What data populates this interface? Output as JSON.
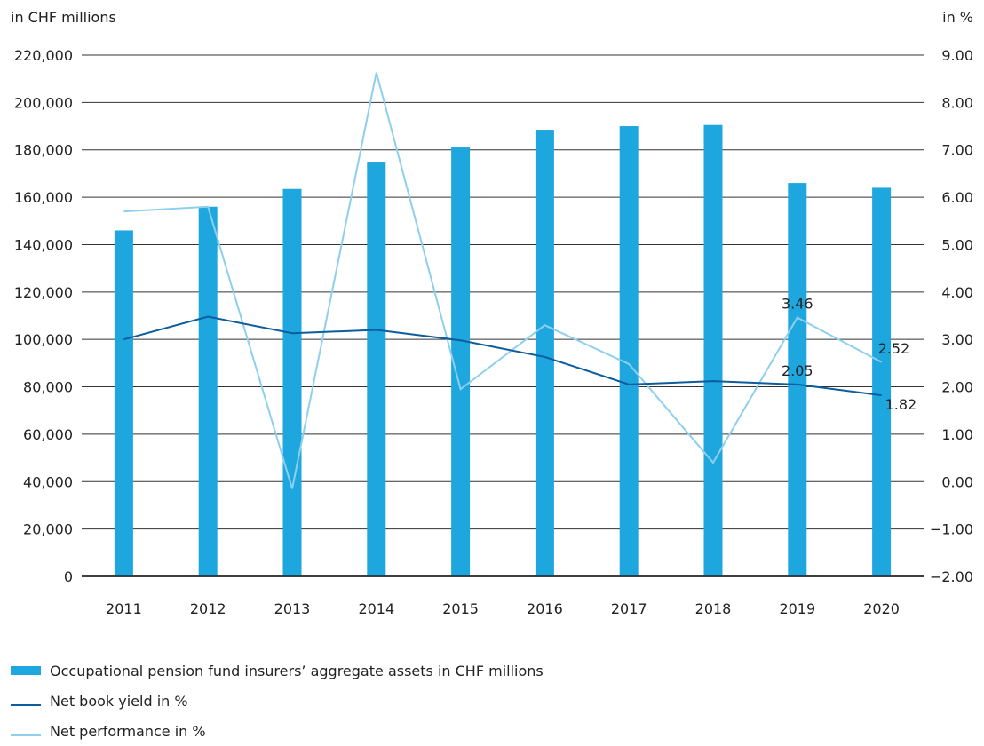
{
  "chart_data": {
    "type": "bar",
    "left_axis_unit": "in CHF millions",
    "right_axis_unit": "in %",
    "categories": [
      "2011",
      "2012",
      "2013",
      "2014",
      "2015",
      "2016",
      "2017",
      "2018",
      "2019",
      "2020"
    ],
    "y_left": {
      "min": 0,
      "max": 220000,
      "step": 20000,
      "tick_labels": [
        "0",
        "20,000",
        "40,000",
        "60,000",
        "80,000",
        "100,000",
        "120,000",
        "140,000",
        "160,000",
        "180,000",
        "200,000",
        "220,000"
      ]
    },
    "y_right": {
      "min": -2,
      "max": 9,
      "step": 1,
      "tick_labels": [
        "−2.00",
        "−1.00",
        "0.00",
        "1.00",
        "2.00",
        "3.00",
        "4.00",
        "5.00",
        "6.00",
        "7.00",
        "8.00",
        "9.00"
      ]
    },
    "series": [
      {
        "name": "Occupational pension fund insurers’ aggregate assets in CHF millions",
        "kind": "bar",
        "axis": "left",
        "color": "#1ea7de",
        "values": [
          146000,
          156000,
          163500,
          175000,
          181000,
          188500,
          190000,
          190500,
          166000,
          164000
        ]
      },
      {
        "name": "Net book yield in %",
        "kind": "line",
        "axis": "right",
        "color": "#0d5c9e",
        "values": [
          3.0,
          3.48,
          3.13,
          3.2,
          2.98,
          2.63,
          2.05,
          2.12,
          2.05,
          1.82
        ]
      },
      {
        "name": "Net performance in %",
        "kind": "line",
        "axis": "right",
        "color": "#8ecfee",
        "values": [
          5.7,
          5.8,
          -0.15,
          8.63,
          1.95,
          3.3,
          2.48,
          0.4,
          3.46,
          2.52
        ]
      }
    ],
    "data_labels": [
      {
        "text": "3.46",
        "series": "Net performance in %",
        "category": "2019",
        "value": 3.46
      },
      {
        "text": "2.52",
        "series": "Net performance in %",
        "category": "2020",
        "value": 2.52
      },
      {
        "text": "2.05",
        "series": "Net book yield in %",
        "category": "2019",
        "value": 2.05
      },
      {
        "text": "1.82",
        "series": "Net book yield in %",
        "category": "2020",
        "value": 1.82
      }
    ],
    "grid": true,
    "legend_position": "bottom-left"
  }
}
